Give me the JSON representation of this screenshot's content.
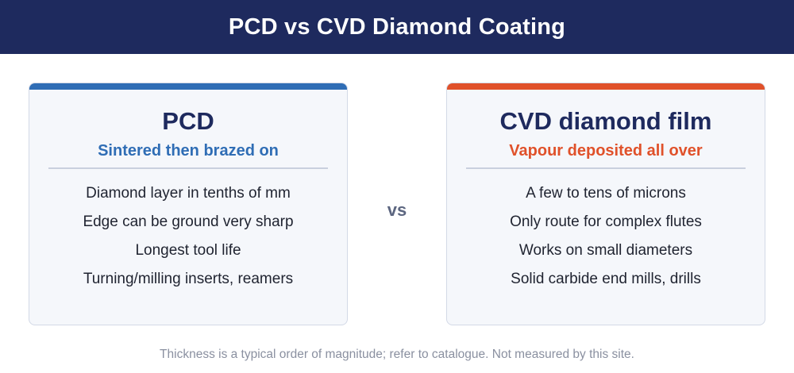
{
  "header": {
    "title": "PCD vs CVD Diamond Coating"
  },
  "left_card": {
    "title": "PCD",
    "subtitle": "Sintered then brazed on",
    "items": [
      "Diamond layer in tenths of mm",
      "Edge can be ground very sharp",
      "Longest tool life",
      "Turning/milling inserts, reamers"
    ],
    "accent_color": "#2f6db5"
  },
  "vs_label": "vs",
  "right_card": {
    "title": "CVD diamond film",
    "subtitle": "Vapour deposited all over",
    "items": [
      "A few to tens of microns",
      "Only route for complex flutes",
      "Works on small diameters",
      "Solid carbide end mills, drills"
    ],
    "accent_color": "#e0512a"
  },
  "footnote": "Thickness is a typical order of magnitude; refer to catalogue. Not measured by this site.",
  "colors": {
    "header_bg": "#1e2a5e",
    "card_bg": "#f5f7fb"
  }
}
